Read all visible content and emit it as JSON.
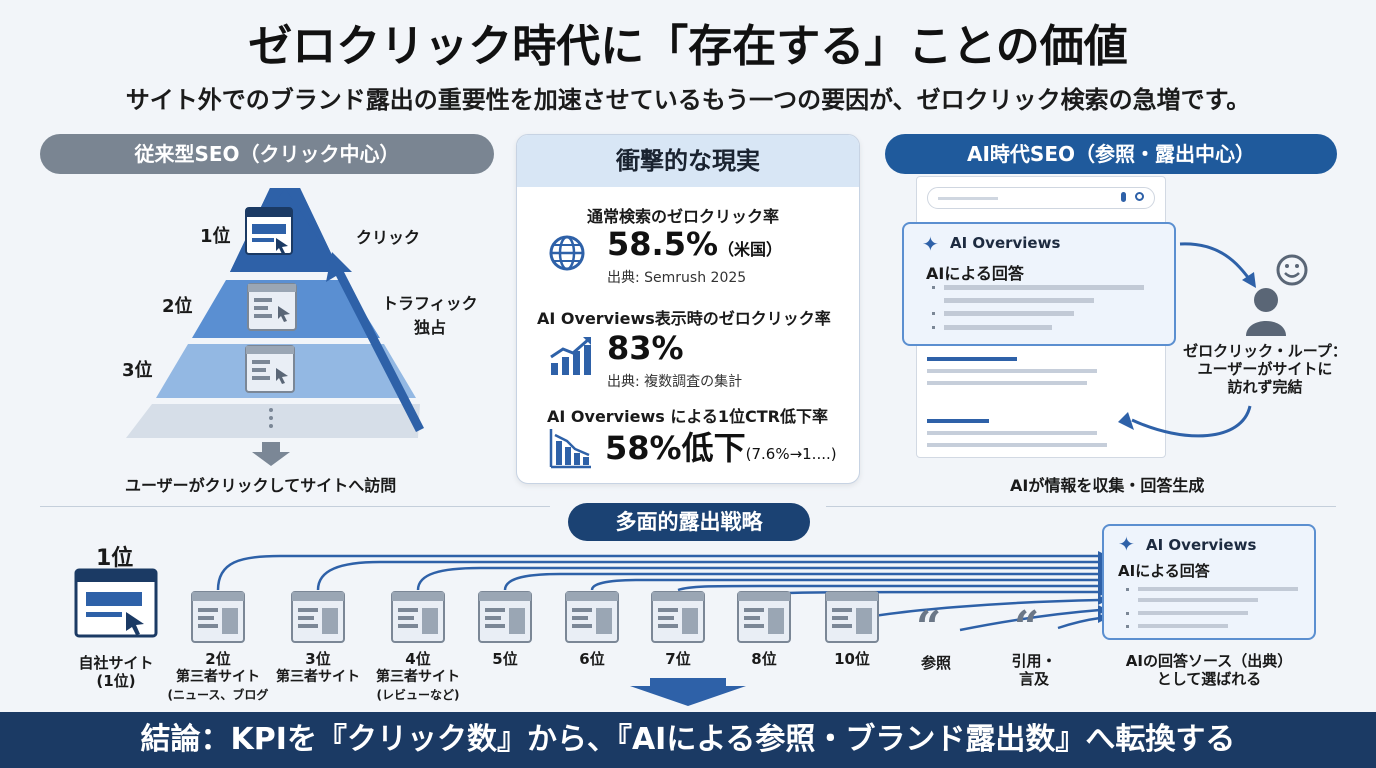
{
  "header": {
    "title": "ゼロクリック時代に「存在する」ことの価値",
    "subtitle": "サイト外でのブランド露出の重要性を加速させているもう一つの要因が、ゼロクリック検索の急増です。"
  },
  "left_panel": {
    "heading": "従来型SEO（クリック中心）",
    "ranks": [
      "1位",
      "2位",
      "3位"
    ],
    "click_label": "クリック",
    "traffic_label_1": "トラフィック",
    "traffic_label_2": "独占",
    "caption": "ユーザーがクリックしてサイトへ訪問"
  },
  "center_card": {
    "heading": "衝撃的な現実",
    "stats": [
      {
        "label": "通常検索のゼロクリック率",
        "value": "58.5%",
        "suffix": "（米国）",
        "source": "出典: Semrush 2025"
      },
      {
        "label": "AI Overviews表示時のゼロクリック率",
        "value": "83%",
        "suffix": "",
        "source": "出典: 複数調査の集計"
      },
      {
        "label": "AI Overviews による1位CTR低下率",
        "value": "58%低下",
        "suffix": "(7.6%→1....)",
        "source": ""
      }
    ],
    "icons": [
      "globe-icon",
      "rising-chart-icon",
      "falling-chart-icon"
    ]
  },
  "right_panel": {
    "heading": "AI時代SEO（参照・露出中心）",
    "ai_title": "AI Overviews",
    "ai_answer": "AIによる回答",
    "loop_label_1": "ゼロクリック・ループ：",
    "loop_label_2": "ユーザーがサイトに",
    "loop_label_3": "訪れず完結",
    "caption": "AIが情報を収集・回答生成"
  },
  "strategy": {
    "heading": "多面的露出戦略",
    "own_rank": "1位",
    "own_label_1": "自社サイト",
    "own_label_2": "(1位)",
    "sources": [
      {
        "rank": "2位",
        "line1": "第三者サイト",
        "line2": "(ニュース、ブログ"
      },
      {
        "rank": "3位",
        "line1": "第三者サイト",
        "line2": ""
      },
      {
        "rank": "4位",
        "line1": "第三者サイト",
        "line2": "(レビューなど)"
      },
      {
        "rank": "5位",
        "line1": "",
        "line2": ""
      },
      {
        "rank": "6位",
        "line1": "",
        "line2": ""
      },
      {
        "rank": "7位",
        "line1": "",
        "line2": ""
      },
      {
        "rank": "8位",
        "line1": "",
        "line2": ""
      },
      {
        "rank": "10位",
        "line1": "",
        "line2": ""
      }
    ],
    "quote_1": "参照",
    "quote_2a": "引用・",
    "quote_2b": "言及",
    "ai_title": "AI Overviews",
    "ai_answer": "AIによる回答",
    "ai_caption_1": "AIの回答ソース（出典）",
    "ai_caption_2": "として選ばれる"
  },
  "footer": {
    "conclusion": "結論：KPIを『クリック数』から、『AIによる参照・ブランド露出数』へ転換する"
  },
  "colors": {
    "navy": "#1b3a64",
    "blue": "#1f5a9c",
    "grey": "#7a8592",
    "pyramid_top": "#2e61a8",
    "pyramid_mid": "#5a8fd2",
    "pyramid_low": "#93b8e3",
    "pyramid_base": "#d6dee8"
  }
}
